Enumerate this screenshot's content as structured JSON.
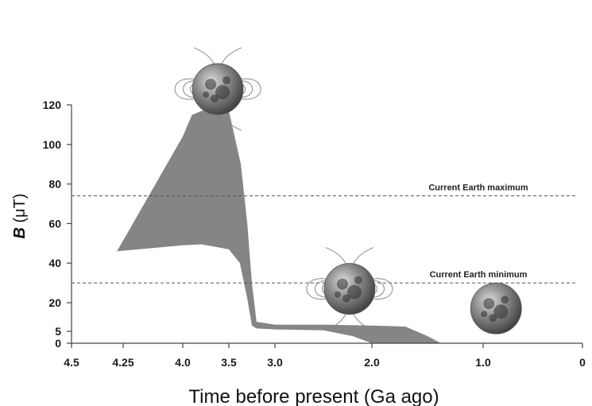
{
  "chart_data": {
    "type": "area",
    "xlabel": "Time before present (Ga ago)",
    "ylabel_var": "B",
    "ylabel_unit": " (μT)",
    "x_reversed": true,
    "xlim": [
      4.5,
      0
    ],
    "ylim": [
      0,
      120
    ],
    "xticks": [
      {
        "label": "4.5",
        "value": 4.5
      },
      {
        "label": "4.25",
        "value": 4.25
      },
      {
        "label": "4.0",
        "value": 4.0
      },
      {
        "label": "3.5",
        "value": 3.5
      },
      {
        "label": "3.0",
        "value": 3.0
      },
      {
        "label": "2.0",
        "value": 2.0
      },
      {
        "label": "1.0",
        "value": 1.0
      },
      {
        "label": "0",
        "value": 0
      }
    ],
    "yticks": [
      {
        "label": "0",
        "value": 0
      },
      {
        "label": "5",
        "value": 5
      },
      {
        "label": "20",
        "value": 20
      },
      {
        "label": "40",
        "value": 40
      },
      {
        "label": "60",
        "value": 60
      },
      {
        "label": "80",
        "value": 80
      },
      {
        "label": "100",
        "value": 100
      },
      {
        "label": "120",
        "value": 120
      }
    ],
    "reference_lines": [
      {
        "label": "Current Earth maximum",
        "y": 74
      },
      {
        "label": "Current Earth minimum",
        "y": 30
      }
    ],
    "band_upper": [
      {
        "x": 4.28,
        "y": 46
      },
      {
        "x": 4.0,
        "y": 104
      },
      {
        "x": 3.9,
        "y": 115
      },
      {
        "x": 3.63,
        "y": 120
      },
      {
        "x": 3.5,
        "y": 117
      },
      {
        "x": 3.37,
        "y": 90
      },
      {
        "x": 3.3,
        "y": 60
      },
      {
        "x": 3.25,
        "y": 30
      },
      {
        "x": 3.2,
        "y": 10
      },
      {
        "x": 3.0,
        "y": 8.5
      },
      {
        "x": 2.5,
        "y": 8.5
      },
      {
        "x": 2.0,
        "y": 8
      },
      {
        "x": 1.7,
        "y": 7.5
      },
      {
        "x": 1.5,
        "y": 3
      },
      {
        "x": 1.38,
        "y": 0
      }
    ],
    "band_lower": [
      {
        "x": 4.28,
        "y": 46
      },
      {
        "x": 4.0,
        "y": 49
      },
      {
        "x": 3.8,
        "y": 49.5
      },
      {
        "x": 3.5,
        "y": 47
      },
      {
        "x": 3.38,
        "y": 40
      },
      {
        "x": 3.3,
        "y": 22
      },
      {
        "x": 3.25,
        "y": 8
      },
      {
        "x": 3.2,
        "y": 6.5
      },
      {
        "x": 3.0,
        "y": 6
      },
      {
        "x": 2.5,
        "y": 5.5
      },
      {
        "x": 2.2,
        "y": 3
      },
      {
        "x": 2.0,
        "y": 0
      }
    ],
    "band_color": "#858585",
    "grid": false
  },
  "icons": [
    {
      "name": "magnetized-moon-icon",
      "x": 3.62,
      "y": 128,
      "field": true
    },
    {
      "name": "magnetized-moon-icon",
      "x": 2.23,
      "y": 27,
      "field": true
    },
    {
      "name": "unmagnetized-moon-icon",
      "x": 0.87,
      "y": 17,
      "field": false
    }
  ],
  "colors": {
    "moon_light": "#c8c8c8",
    "moon_mid": "#8c8c8c",
    "moon_dark": "#3c3c3c"
  }
}
